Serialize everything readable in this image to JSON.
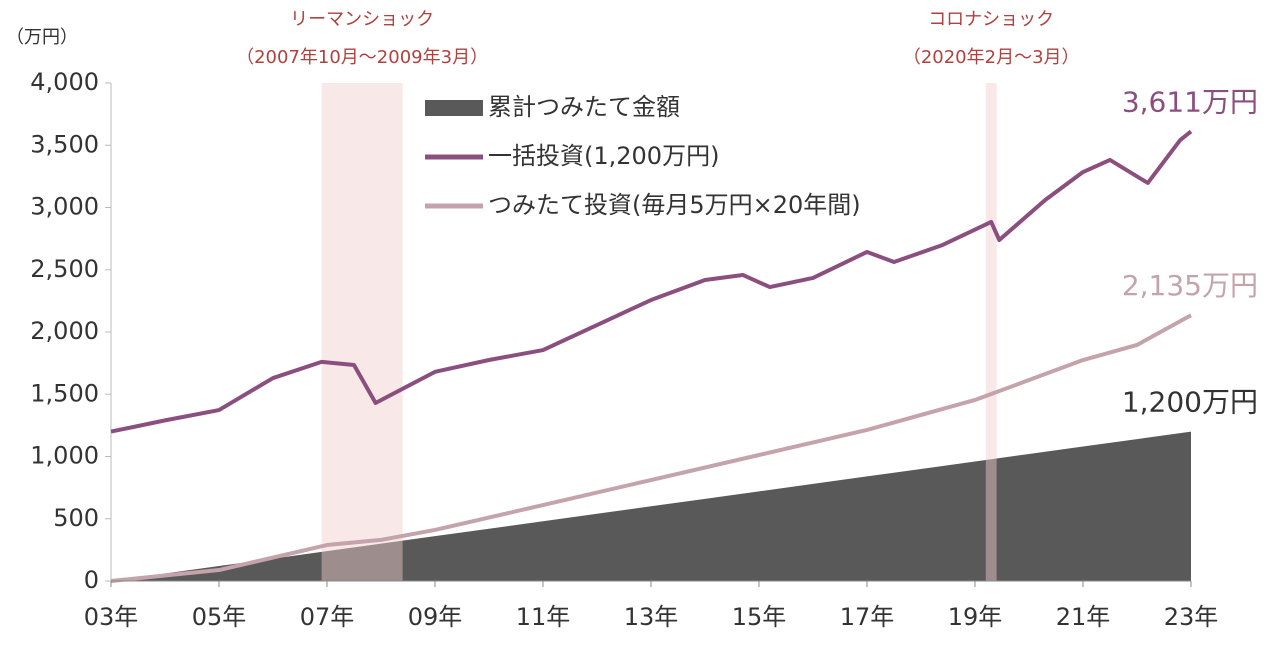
{
  "chart_data": {
    "type": "line",
    "y_unit": "（万円）",
    "xlim": [
      2003,
      2023
    ],
    "xticks": [
      {
        "value": 2003,
        "label": "03年"
      },
      {
        "value": 2005,
        "label": "05年"
      },
      {
        "value": 2007,
        "label": "07年"
      },
      {
        "value": 2009,
        "label": "09年"
      },
      {
        "value": 2011,
        "label": "11年"
      },
      {
        "value": 2013,
        "label": "13年"
      },
      {
        "value": 2015,
        "label": "15年"
      },
      {
        "value": 2017,
        "label": "17年"
      },
      {
        "value": 2019,
        "label": "19年"
      },
      {
        "value": 2021,
        "label": "21年"
      },
      {
        "value": 2023,
        "label": "23年"
      }
    ],
    "ylim": [
      0,
      4000
    ],
    "yticks": [
      0,
      500,
      {
        "value": 1000,
        "label": "1,000"
      },
      {
        "value": 1500,
        "label": "1,500"
      },
      {
        "value": 2000,
        "label": "2,000"
      },
      {
        "value": 2500,
        "label": "2,500"
      },
      {
        "value": 3000,
        "label": "3,000"
      },
      {
        "value": 3500,
        "label": "3,500"
      },
      {
        "value": 4000,
        "label": "4,000"
      }
    ],
    "shades": [
      {
        "title": "リーマンショック",
        "period": "（2007年10月～2009年3月）",
        "range": [
          2006.9,
          2008.4
        ]
      },
      {
        "title": "コロナショック",
        "period": "（2020年2月～3月）",
        "range": [
          2019.2,
          2019.4
        ]
      }
    ],
    "series": [
      {
        "name": "累計つみたて金額",
        "style": "area",
        "color": "#595959",
        "label": "1,200万円",
        "x": [
          2003,
          2004,
          2005,
          2006,
          2007,
          2008,
          2009,
          2010,
          2011,
          2012,
          2013,
          2014,
          2015,
          2016,
          2017,
          2018,
          2019,
          2020,
          2021,
          2022,
          2023
        ],
        "values": [
          0,
          60,
          120,
          180,
          240,
          300,
          360,
          420,
          480,
          540,
          600,
          660,
          720,
          780,
          840,
          900,
          960,
          1020,
          1080,
          1140,
          1200
        ]
      },
      {
        "name": "一括投資(1,200万円)",
        "style": "line",
        "color": "#8b4f7f",
        "label": "3,611万円",
        "x": [
          2003,
          2004,
          2005,
          2006,
          2006.9,
          2007.5,
          2007.9,
          2009,
          2010,
          2011,
          2012,
          2013,
          2014,
          2014.7,
          2015.2,
          2016,
          2017,
          2017.5,
          2018.4,
          2019.3,
          2019.45,
          2020.3,
          2021,
          2021.5,
          2022.2,
          2022.8,
          2023
        ],
        "values": [
          1200,
          1290,
          1373,
          1630,
          1760,
          1735,
          1430,
          1680,
          1775,
          1855,
          2056,
          2257,
          2418,
          2458,
          2361,
          2434,
          2643,
          2562,
          2699,
          2884,
          2739,
          3060,
          3285,
          3382,
          3197,
          3542,
          3611
        ]
      },
      {
        "name": "つみたて投資(毎月5万円×20年間)",
        "style": "line",
        "color": "#c4a3ad",
        "label": "2,135万円",
        "x": [
          2003,
          2005,
          2007,
          2008,
          2009,
          2011,
          2013,
          2015,
          2017,
          2019,
          2020,
          2021,
          2022,
          2023
        ],
        "values": [
          0,
          88,
          289,
          330,
          410,
          610,
          811,
          1012,
          1213,
          1454,
          1614,
          1775,
          1896,
          2135
        ]
      }
    ]
  }
}
